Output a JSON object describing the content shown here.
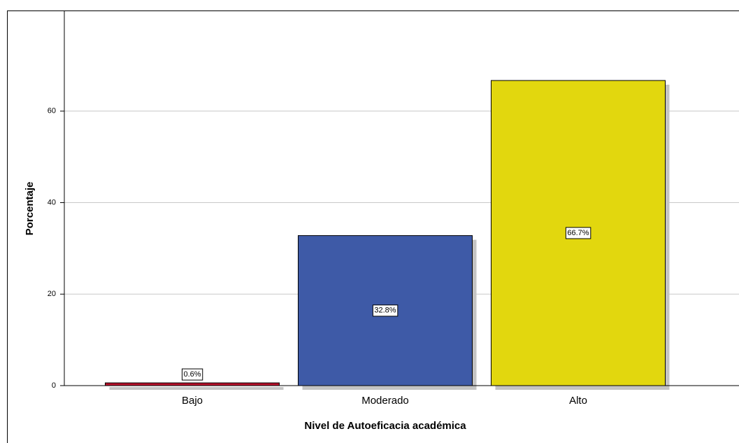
{
  "chart_data": {
    "type": "bar",
    "x_label": "Nivel de Autoeficacia académica",
    "y_label": "Porcentaje",
    "categories": [
      "Bajo",
      "Moderado",
      "Alto"
    ],
    "values": [
      0.6,
      32.8,
      66.7
    ],
    "value_labels": [
      "0.6%",
      "32.8%",
      "66.7%"
    ],
    "colors": [
      "#b8102a",
      "#3e5aa7",
      "#e2d70e"
    ],
    "ylim": [
      0,
      82
    ],
    "yticks": [
      0,
      20,
      40,
      60
    ],
    "grid": true
  }
}
